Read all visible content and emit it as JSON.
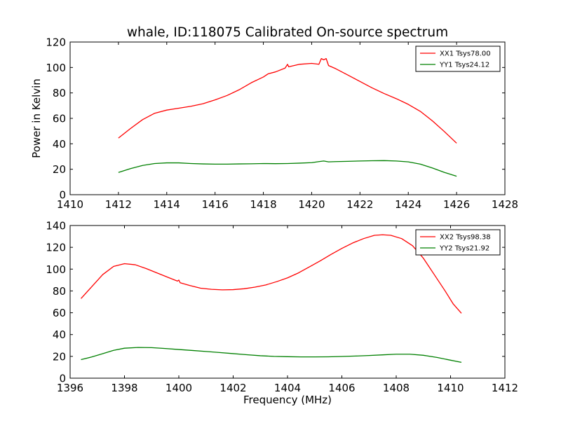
{
  "figure_title": "whale, ID:118075 Calibrated On-source spectrum",
  "chart_data": [
    {
      "type": "line",
      "title": "whale, ID:118075 Calibrated On-source spectrum",
      "xlabel": "",
      "ylabel": "Power in Kelvin",
      "xlim": [
        1410,
        1428
      ],
      "ylim": [
        0,
        120
      ],
      "xticks": [
        1410,
        1412,
        1414,
        1416,
        1418,
        1420,
        1422,
        1424,
        1426,
        1428
      ],
      "yticks": [
        0,
        20,
        40,
        60,
        80,
        100,
        120
      ],
      "grid": false,
      "legend_position": "top-right",
      "series": [
        {
          "name": "XX1 Tsys78.00",
          "color": "#ff0000",
          "points": [
            [
              1412.0,
              44.5
            ],
            [
              1412.5,
              52
            ],
            [
              1413.0,
              59
            ],
            [
              1413.5,
              64
            ],
            [
              1414.0,
              66.5
            ],
            [
              1414.5,
              68
            ],
            [
              1415.0,
              69.5
            ],
            [
              1415.5,
              71.5
            ],
            [
              1416.0,
              74.5
            ],
            [
              1416.5,
              78
            ],
            [
              1417.0,
              82.5
            ],
            [
              1417.5,
              88
            ],
            [
              1418.0,
              92.5
            ],
            [
              1418.2,
              95
            ],
            [
              1418.5,
              96.5
            ],
            [
              1418.9,
              99.5
            ],
            [
              1419.0,
              102.5
            ],
            [
              1419.05,
              100.5
            ],
            [
              1419.5,
              102.5
            ],
            [
              1420.0,
              103.2
            ],
            [
              1420.3,
              102.5
            ],
            [
              1420.4,
              107
            ],
            [
              1420.5,
              106
            ],
            [
              1420.6,
              107
            ],
            [
              1420.7,
              101.5
            ],
            [
              1421.0,
              99
            ],
            [
              1421.5,
              94
            ],
            [
              1422.0,
              89
            ],
            [
              1422.5,
              84
            ],
            [
              1423.0,
              79.5
            ],
            [
              1423.5,
              75.5
            ],
            [
              1424.0,
              71
            ],
            [
              1424.5,
              65.5
            ],
            [
              1425.0,
              58
            ],
            [
              1425.5,
              49.5
            ],
            [
              1426.0,
              40.5
            ]
          ]
        },
        {
          "name": "YY1 Tsys24.12",
          "color": "#008000",
          "points": [
            [
              1412.0,
              17.5
            ],
            [
              1412.5,
              20.5
            ],
            [
              1413.0,
              23
            ],
            [
              1413.5,
              24.5
            ],
            [
              1414.0,
              25
            ],
            [
              1414.5,
              25
            ],
            [
              1415.0,
              24.5
            ],
            [
              1415.5,
              24.2
            ],
            [
              1416.0,
              24
            ],
            [
              1416.5,
              24
            ],
            [
              1417.0,
              24.2
            ],
            [
              1417.5,
              24.3
            ],
            [
              1418.0,
              24.5
            ],
            [
              1418.5,
              24.4
            ],
            [
              1419.0,
              24.5
            ],
            [
              1419.5,
              24.8
            ],
            [
              1420.0,
              25.2
            ],
            [
              1420.3,
              26
            ],
            [
              1420.5,
              26.5
            ],
            [
              1420.7,
              25.8
            ],
            [
              1421.0,
              26
            ],
            [
              1421.5,
              26.2
            ],
            [
              1422.0,
              26.5
            ],
            [
              1422.5,
              26.7
            ],
            [
              1423.0,
              26.8
            ],
            [
              1423.5,
              26.5
            ],
            [
              1424.0,
              25.8
            ],
            [
              1424.5,
              24
            ],
            [
              1425.0,
              21
            ],
            [
              1425.5,
              17.5
            ],
            [
              1426.0,
              14.5
            ]
          ]
        }
      ]
    },
    {
      "type": "line",
      "title": "",
      "xlabel": "Frequency (MHz)",
      "ylabel": "",
      "xlim": [
        1396,
        1412
      ],
      "ylim": [
        0,
        140
      ],
      "xticks": [
        1396,
        1398,
        1400,
        1402,
        1404,
        1406,
        1408,
        1410,
        1412
      ],
      "yticks": [
        0,
        20,
        40,
        60,
        80,
        100,
        120,
        140
      ],
      "grid": false,
      "legend_position": "top-right",
      "series": [
        {
          "name": "XX2 Tsys98.38",
          "color": "#ff0000",
          "points": [
            [
              1396.4,
              73
            ],
            [
              1396.8,
              84
            ],
            [
              1397.2,
              95
            ],
            [
              1397.6,
              102.5
            ],
            [
              1398.0,
              105
            ],
            [
              1398.4,
              104
            ],
            [
              1398.8,
              100.5
            ],
            [
              1399.2,
              96.5
            ],
            [
              1399.6,
              92.5
            ],
            [
              1399.95,
              89
            ],
            [
              1400.0,
              90
            ],
            [
              1400.05,
              87.5
            ],
            [
              1400.4,
              85
            ],
            [
              1400.8,
              82.5
            ],
            [
              1401.2,
              81.5
            ],
            [
              1401.6,
              81
            ],
            [
              1402.0,
              81.2
            ],
            [
              1402.4,
              82
            ],
            [
              1402.8,
              83.5
            ],
            [
              1403.2,
              85.5
            ],
            [
              1403.6,
              88.5
            ],
            [
              1404.0,
              92
            ],
            [
              1404.4,
              96.5
            ],
            [
              1404.8,
              102
            ],
            [
              1405.2,
              107.5
            ],
            [
              1405.6,
              113.5
            ],
            [
              1406.0,
              119
            ],
            [
              1406.4,
              124
            ],
            [
              1406.8,
              128
            ],
            [
              1407.2,
              131
            ],
            [
              1407.5,
              131.5
            ],
            [
              1407.8,
              131
            ],
            [
              1408.2,
              128
            ],
            [
              1408.6,
              121.5
            ],
            [
              1409.0,
              110
            ],
            [
              1409.4,
              95
            ],
            [
              1409.8,
              80
            ],
            [
              1410.1,
              68
            ],
            [
              1410.4,
              59.5
            ]
          ]
        },
        {
          "name": "YY2 Tsys21.92",
          "color": "#008000",
          "points": [
            [
              1396.4,
              17
            ],
            [
              1396.8,
              19.5
            ],
            [
              1397.2,
              22.5
            ],
            [
              1397.6,
              25.5
            ],
            [
              1398.0,
              27.5
            ],
            [
              1398.5,
              28.2
            ],
            [
              1399.0,
              28
            ],
            [
              1399.5,
              27.2
            ],
            [
              1400.0,
              26.3
            ],
            [
              1400.5,
              25.4
            ],
            [
              1401.0,
              24.5
            ],
            [
              1401.5,
              23.5
            ],
            [
              1402.0,
              22.5
            ],
            [
              1402.5,
              21.5
            ],
            [
              1403.0,
              20.6
            ],
            [
              1403.5,
              20
            ],
            [
              1404.0,
              19.7
            ],
            [
              1404.5,
              19.5
            ],
            [
              1405.0,
              19.5
            ],
            [
              1405.5,
              19.6
            ],
            [
              1406.0,
              19.9
            ],
            [
              1406.5,
              20.3
            ],
            [
              1407.0,
              20.8
            ],
            [
              1407.5,
              21.4
            ],
            [
              1408.0,
              22
            ],
            [
              1408.5,
              22
            ],
            [
              1409.0,
              21
            ],
            [
              1409.5,
              19
            ],
            [
              1410.0,
              16.5
            ],
            [
              1410.4,
              14.5
            ]
          ]
        }
      ]
    }
  ]
}
